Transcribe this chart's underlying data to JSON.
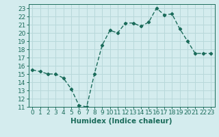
{
  "x": [
    0,
    1,
    2,
    3,
    4,
    5,
    6,
    7,
    8,
    9,
    10,
    11,
    12,
    13,
    14,
    15,
    16,
    17,
    18,
    19,
    20,
    21,
    22,
    23
  ],
  "y": [
    15.5,
    15.3,
    15.0,
    15.0,
    14.5,
    13.2,
    11.2,
    11.0,
    15.0,
    18.5,
    20.3,
    20.0,
    21.2,
    21.2,
    20.8,
    21.3,
    23.0,
    22.2,
    22.3,
    20.5,
    19.0,
    17.5,
    17.5,
    17.5
  ],
  "line_color": "#1a6b5a",
  "marker": "D",
  "marker_size": 2.2,
  "bg_color": "#d4ecee",
  "grid_color": "#b8d8da",
  "xlabel": "Humidex (Indice chaleur)",
  "xlim": [
    -0.5,
    23.5
  ],
  "ylim": [
    11,
    23.5
  ],
  "yticks": [
    11,
    12,
    13,
    14,
    15,
    16,
    17,
    18,
    19,
    20,
    21,
    22,
    23
  ],
  "xticks": [
    0,
    1,
    2,
    3,
    4,
    5,
    6,
    7,
    8,
    9,
    10,
    11,
    12,
    13,
    14,
    15,
    16,
    17,
    18,
    19,
    20,
    21,
    22,
    23
  ],
  "xlabel_fontsize": 7.5,
  "tick_fontsize": 6.5,
  "line_width": 1.0
}
